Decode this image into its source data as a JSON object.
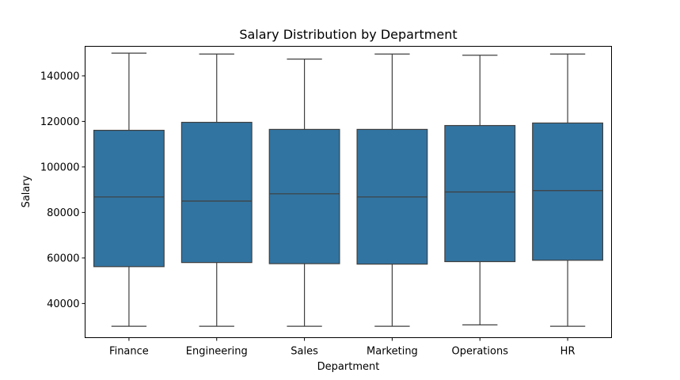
{
  "chart_data": {
    "type": "box",
    "title": "Salary Distribution by Department",
    "xlabel": "Department",
    "ylabel": "Salary",
    "ylim": [
      25000,
      153000
    ],
    "yticks": [
      40000,
      60000,
      80000,
      100000,
      120000,
      140000
    ],
    "ytick_labels": [
      "40000",
      "60000",
      "80000",
      "100000",
      "120000",
      "140000"
    ],
    "grid": false,
    "box_color": "#3274a1",
    "line_color": "#3f3f3f",
    "categories": [
      "Finance",
      "Engineering",
      "Sales",
      "Marketing",
      "Operations",
      "HR"
    ],
    "boxes": [
      {
        "category": "Finance",
        "min": 30000,
        "q1": 56200,
        "median": 86800,
        "q3": 116100,
        "max": 150000
      },
      {
        "category": "Engineering",
        "min": 30000,
        "q1": 58000,
        "median": 85000,
        "q3": 119600,
        "max": 149600
      },
      {
        "category": "Sales",
        "min": 30000,
        "q1": 57500,
        "median": 88200,
        "q3": 116500,
        "max": 147400
      },
      {
        "category": "Marketing",
        "min": 30000,
        "q1": 57300,
        "median": 86800,
        "q3": 116500,
        "max": 149600
      },
      {
        "category": "Operations",
        "min": 30600,
        "q1": 58400,
        "median": 89000,
        "q3": 118200,
        "max": 149100
      },
      {
        "category": "HR",
        "min": 30000,
        "q1": 59000,
        "median": 89600,
        "q3": 119300,
        "max": 149600
      }
    ]
  }
}
